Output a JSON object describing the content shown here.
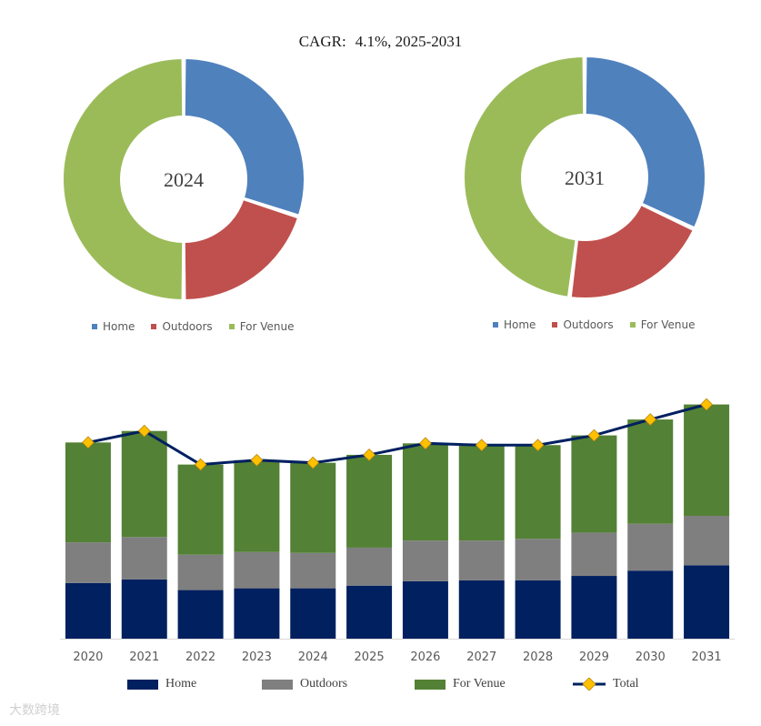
{
  "title": "CAGR:",
  "cagr_value": "4.1%, 2025-2031",
  "colors": {
    "home_donut": "#4f81bd",
    "outdoors_donut": "#c0504d",
    "venue_donut": "#9bbb59",
    "home_bar": "#002060",
    "outdoors_bar": "#7f7f7f",
    "venue_bar": "#538135",
    "total_line": "#002060",
    "total_marker": "#ffc000"
  },
  "watermark": "大数跨境",
  "chart_data": [
    {
      "type": "pie",
      "variant": "donut",
      "center_label": "2024",
      "categories": [
        "Home",
        "Outdoors",
        "For Venue"
      ],
      "values": [
        30,
        20,
        50
      ],
      "legend": [
        "Home",
        "Outdoors",
        "For Venue"
      ]
    },
    {
      "type": "pie",
      "variant": "donut",
      "center_label": "2031",
      "categories": [
        "Home",
        "Outdoors",
        "For Venue"
      ],
      "values": [
        32,
        20,
        48
      ],
      "legend": [
        "Home",
        "Outdoors",
        "For Venue"
      ]
    },
    {
      "type": "bar",
      "stacked": true,
      "categories": [
        "2020",
        "2021",
        "2022",
        "2023",
        "2024",
        "2025",
        "2026",
        "2027",
        "2028",
        "2029",
        "2030",
        "2031"
      ],
      "series": [
        {
          "name": "Home",
          "values": [
            63,
            67,
            55,
            57,
            57,
            60,
            65,
            66,
            66,
            71,
            77,
            83
          ]
        },
        {
          "name": "Outdoors",
          "values": [
            46,
            48,
            40,
            41,
            40,
            43,
            46,
            45,
            47,
            49,
            53,
            56
          ]
        },
        {
          "name": "For Venue",
          "values": [
            113,
            120,
            102,
            104,
            102,
            105,
            110,
            108,
            106,
            110,
            118,
            126
          ]
        }
      ],
      "total": {
        "name": "Total",
        "values": [
          222,
          235,
          197,
          202,
          199,
          208,
          221,
          219,
          219,
          230,
          248,
          265
        ]
      },
      "ylim": [
        0,
        280
      ],
      "legend": [
        "Home",
        "Outdoors",
        "For Venue",
        "Total"
      ]
    }
  ]
}
